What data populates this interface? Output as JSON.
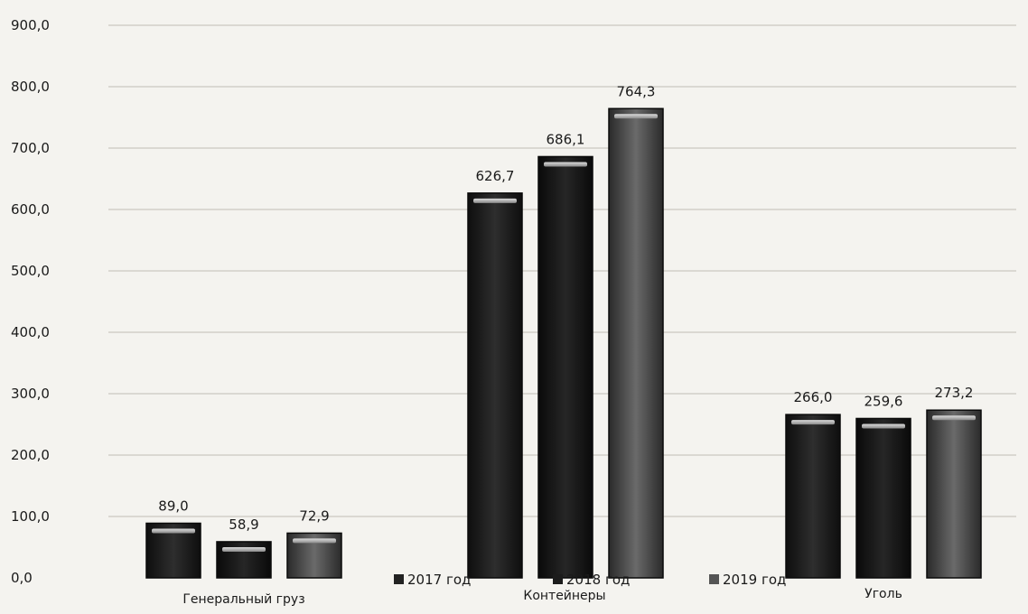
{
  "chart_data": {
    "type": "bar",
    "title": "",
    "xlabel": "",
    "ylabel": "",
    "ylim": [
      0,
      900
    ],
    "y_ticks": [
      "0,0",
      "100,0",
      "200,0",
      "300,0",
      "400,0",
      "500,0",
      "600,0",
      "700,0",
      "800,0",
      "900,0"
    ],
    "grid": true,
    "categories": [
      "Генеральный груз",
      "Контейнеры",
      "Уголь"
    ],
    "series": [
      {
        "name": "2017 год",
        "color": "#222222",
        "values": [
          89.0,
          626.7,
          266.0
        ],
        "labels": [
          "89,0",
          "626,7",
          "266,0"
        ]
      },
      {
        "name": "2018 год",
        "color": "#1c1c1c",
        "values": [
          58.9,
          686.1,
          259.6
        ],
        "labels": [
          "58,9",
          "686,1",
          "259,6"
        ]
      },
      {
        "name": "2019 год",
        "color": "#555555",
        "values": [
          72.9,
          764.3,
          273.2
        ],
        "labels": [
          "72,9",
          "764,3",
          "273,2"
        ]
      }
    ],
    "legend_position": "bottom"
  }
}
